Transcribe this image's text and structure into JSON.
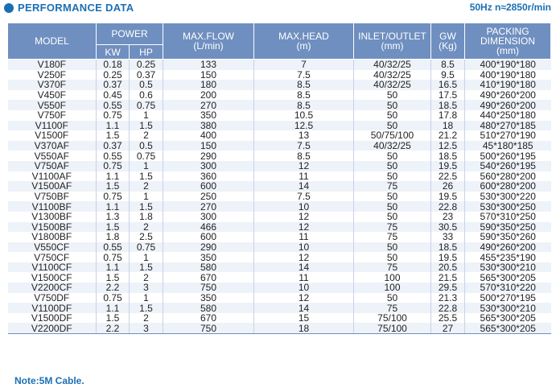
{
  "header": {
    "title": "PERFORMANCE DATA",
    "frequency": "50Hz",
    "speed": "n≈2850r/min"
  },
  "table": {
    "col_model": "MODEL",
    "col_power": "POWER",
    "col_kw": "KW",
    "col_hp": "HP",
    "col_flow": "MAX.FLOW",
    "col_flow_unit": "(L/min)",
    "col_head": "MAX.HEAD",
    "col_head_unit": "(m)",
    "col_io": "INLET/OUTLET",
    "col_io_unit": "(mm)",
    "col_gw": "GW",
    "col_gw_unit": "(Kg)",
    "col_dim": "PACKING DIMENSION",
    "col_dim_unit": "(mm)",
    "rows": [
      [
        "V180F",
        "0.18",
        "0.25",
        "133",
        "7",
        "40/32/25",
        "8.5",
        "400*190*180"
      ],
      [
        "V250F",
        "0.25",
        "0.37",
        "150",
        "7.5",
        "40/32/25",
        "9.5",
        "400*190*180"
      ],
      [
        "V370F",
        "0.37",
        "0.5",
        "180",
        "8.5",
        "40/32/25",
        "16.5",
        "410*190*180"
      ],
      [
        "V450F",
        "0.45",
        "0.6",
        "200",
        "8.5",
        "50",
        "17.5",
        "490*260*200"
      ],
      [
        "V550F",
        "0.55",
        "0.75",
        "270",
        "8.5",
        "50",
        "18.5",
        "490*260*200"
      ],
      [
        "V750F",
        "0.75",
        "1",
        "350",
        "10.5",
        "50",
        "17.8",
        "440*250*180"
      ],
      [
        "V1100F",
        "1.1",
        "1.5",
        "380",
        "12.5",
        "50",
        "18",
        "480*270*185"
      ],
      [
        "V1500F",
        "1.5",
        "2",
        "400",
        "13",
        "50/75/100",
        "21.2",
        "510*270*190"
      ],
      [
        "V370AF",
        "0.37",
        "0.5",
        "150",
        "7.5",
        "40/32/25",
        "12.5",
        "45*180*185"
      ],
      [
        "V550AF",
        "0.55",
        "0.75",
        "290",
        "8.5",
        "50",
        "18.5",
        "500*260*195"
      ],
      [
        "V750AF",
        "0.75",
        "1",
        "300",
        "12",
        "50",
        "19.5",
        "540*260*195"
      ],
      [
        "V1100AF",
        "1.1",
        "1.5",
        "360",
        "11",
        "50",
        "22.5",
        "560*280*200"
      ],
      [
        "V1500AF",
        "1.5",
        "2",
        "600",
        "14",
        "75",
        "26",
        "600*280*200"
      ],
      [
        "V750BF",
        "0.75",
        "1",
        "250",
        "7.5",
        "50",
        "19.5",
        "530*300*220"
      ],
      [
        "V1100BF",
        "1.1",
        "1.5",
        "270",
        "10",
        "50",
        "22.8",
        "530*300*250"
      ],
      [
        "V1300BF",
        "1.3",
        "1.8",
        "300",
        "12",
        "50",
        "23",
        "570*310*250"
      ],
      [
        "V1500BF",
        "1.5",
        "2",
        "466",
        "12",
        "75",
        "30.5",
        "590*350*250"
      ],
      [
        "V1800BF",
        "1.8",
        "2.5",
        "600",
        "11",
        "75",
        "33",
        "590*350*260"
      ],
      [
        "V550CF",
        "0.55",
        "0.75",
        "290",
        "10",
        "50",
        "18.5",
        "490*260*200"
      ],
      [
        "V750CF",
        "0.75",
        "1",
        "350",
        "12",
        "50",
        "19.5",
        "455*235*190"
      ],
      [
        "V1100CF",
        "1.1",
        "1.5",
        "580",
        "14",
        "75",
        "20.5",
        "530*300*210"
      ],
      [
        "V1500CF",
        "1.5",
        "2",
        "670",
        "11",
        "100",
        "21.5",
        "565*300*205"
      ],
      [
        "V2200CF",
        "2.2",
        "3",
        "750",
        "10",
        "100",
        "29.5",
        "570*310*220"
      ],
      [
        "V750DF",
        "0.75",
        "1",
        "350",
        "12",
        "50",
        "21.3",
        "500*270*195"
      ],
      [
        "V1100DF",
        "1.1",
        "1.5",
        "580",
        "14",
        "75",
        "22.8",
        "530*300*210"
      ],
      [
        "V1500DF",
        "1.5",
        "2",
        "670",
        "15",
        "75/100",
        "25.5",
        "565*300*205"
      ],
      [
        "V2200DF",
        "2.2",
        "3",
        "750",
        "18",
        "75/100",
        "27",
        "565*300*205"
      ]
    ]
  },
  "note": "Note:5M Cable.",
  "colors": {
    "accent": "#1b6fb5",
    "header_bg": "#6f8fc0",
    "row_alt": "#eef2f9"
  }
}
